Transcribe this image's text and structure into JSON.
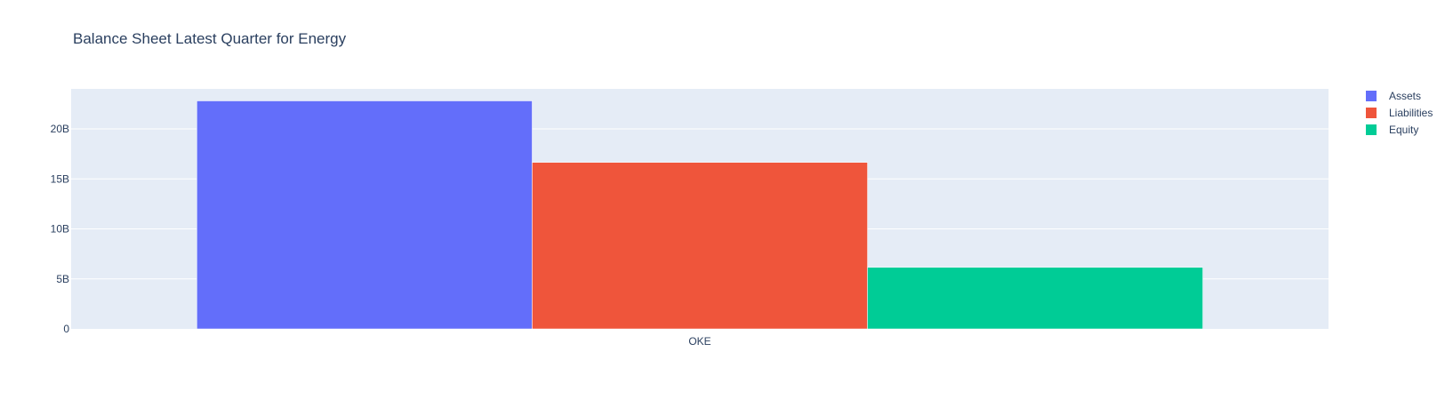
{
  "chart_data": {
    "type": "bar",
    "title": "Balance Sheet Latest Quarter for Energy",
    "categories": [
      "OKE"
    ],
    "series": [
      {
        "name": "Assets",
        "values": [
          22.8
        ],
        "color": "#636efa"
      },
      {
        "name": "Liabilities",
        "values": [
          16.65
        ],
        "color": "#ef553b"
      },
      {
        "name": "Equity",
        "values": [
          6.15
        ],
        "color": "#00cc96"
      }
    ],
    "units": "billions",
    "ylim": [
      0,
      24
    ],
    "yticks": [
      {
        "value": 0,
        "label": "0"
      },
      {
        "value": 5,
        "label": "5B"
      },
      {
        "value": 10,
        "label": "10B"
      },
      {
        "value": 15,
        "label": "15B"
      },
      {
        "value": 20,
        "label": "20B"
      }
    ],
    "xlabel": "",
    "ylabel": "",
    "grid": true,
    "legend_position": "top-right",
    "plot_background": "#e5ecf6",
    "text_color": "#2a3f5f"
  }
}
